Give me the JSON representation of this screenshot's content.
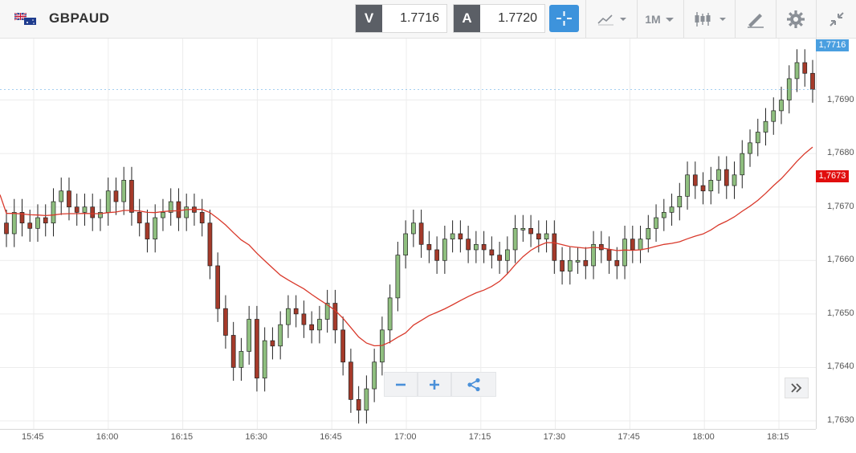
{
  "header": {
    "symbol": "GBPAUD",
    "sell_label": "V",
    "sell_price": "1.7716",
    "buy_label": "A",
    "buy_price": "1.7720",
    "timeframe": "1M"
  },
  "colors": {
    "bull": "#8fbf7f",
    "bear": "#a53a2a",
    "ma_line": "#d9392b",
    "price_tag": "#4a9fe0",
    "ma_tag": "#e10e0e",
    "accent": "#3d93dc"
  },
  "icons": [
    "flag-gb-au-icon",
    "crosshair-icon",
    "chart-type-icon",
    "candle-icon",
    "draw-icon",
    "gear-icon",
    "collapse-icon",
    "minus-icon",
    "plus-icon",
    "share-icon",
    "fast-forward-icon"
  ],
  "chart_data": {
    "type": "candlestick",
    "y_tick_labels": [
      "1,7690",
      "1,7680",
      "1,7670",
      "1,7660",
      "1,7650",
      "1,7640",
      "1,7630"
    ],
    "x_tick_labels": [
      "15:45",
      "16:00",
      "16:15",
      "16:30",
      "16:45",
      "17:00",
      "17:15",
      "17:30",
      "17:45",
      "18:00",
      "18:15"
    ],
    "ylim": [
      1.76285,
      1.77015
    ],
    "current_price_label": "1,7716",
    "ma_value_label": "1,7673",
    "candles_close": [
      1.7665,
      1.7669,
      1.7667,
      1.7666,
      1.7668,
      1.7667,
      1.7671,
      1.7673,
      1.767,
      1.7669,
      1.767,
      1.7668,
      1.7669,
      1.7673,
      1.7671,
      1.7675,
      1.7669,
      1.7667,
      1.7664,
      1.7668,
      1.7669,
      1.7671,
      1.7668,
      1.767,
      1.7669,
      1.7667,
      1.7659,
      1.7651,
      1.7646,
      1.764,
      1.7643,
      1.7649,
      1.7638,
      1.7645,
      1.7644,
      1.7648,
      1.7651,
      1.765,
      1.7648,
      1.7647,
      1.7649,
      1.7652,
      1.7647,
      1.7641,
      1.7634,
      1.7632,
      1.7636,
      1.7641,
      1.7647,
      1.7653,
      1.7661,
      1.7665,
      1.7667,
      1.7663,
      1.7662,
      1.766,
      1.7664,
      1.7665,
      1.7664,
      1.7662,
      1.7663,
      1.7662,
      1.7661,
      1.766,
      1.7662,
      1.7666,
      1.7666,
      1.7665,
      1.7664,
      1.7665,
      1.766,
      1.7658,
      1.766,
      1.766,
      1.7659,
      1.7663,
      1.7662,
      1.766,
      1.7659,
      1.7664,
      1.7662,
      1.7664,
      1.7666,
      1.7668,
      1.7669,
      1.767,
      1.7672,
      1.7676,
      1.7674,
      1.7673,
      1.7675,
      1.7677,
      1.7674,
      1.7676,
      1.768,
      1.7682,
      1.7684,
      1.7686,
      1.7688,
      1.769,
      1.7694,
      1.7697,
      1.7695,
      1.7692
    ]
  }
}
